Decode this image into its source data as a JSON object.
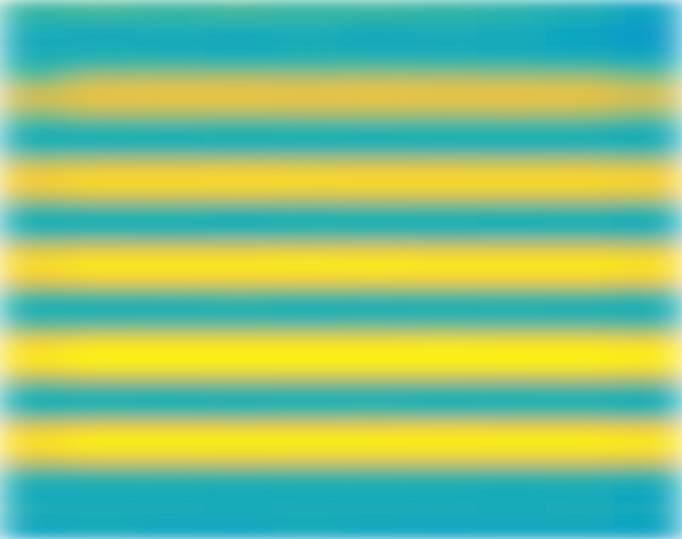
{
  "chart_data": {
    "type": "heatmap",
    "tick_labels": false,
    "zlim": [
      0,
      1
    ],
    "z": [
      [
        0.5,
        0.52,
        0.5,
        0.51,
        0.49,
        0.5,
        0.48,
        0.46,
        0.42,
        0.36
      ],
      [
        0.46,
        0.48,
        0.47,
        0.49,
        0.48,
        0.47,
        0.46,
        0.45,
        0.42,
        0.38
      ],
      [
        0.42,
        0.4,
        0.43,
        0.41,
        0.42,
        0.4,
        0.42,
        0.41,
        0.38,
        0.32
      ],
      [
        0.4,
        0.41,
        0.39,
        0.4,
        0.41,
        0.39,
        0.4,
        0.4,
        0.38,
        0.34
      ],
      [
        0.42,
        0.43,
        0.42,
        0.41,
        0.43,
        0.42,
        0.42,
        0.41,
        0.4,
        0.38
      ],
      [
        0.46,
        0.5,
        0.51,
        0.5,
        0.5,
        0.51,
        0.5,
        0.5,
        0.49,
        0.46
      ],
      [
        0.55,
        0.68,
        0.68,
        0.69,
        0.68,
        0.68,
        0.68,
        0.67,
        0.66,
        0.6
      ],
      [
        0.72,
        0.8,
        0.81,
        0.8,
        0.8,
        0.81,
        0.8,
        0.8,
        0.79,
        0.74
      ],
      [
        0.74,
        0.8,
        0.8,
        0.81,
        0.8,
        0.8,
        0.8,
        0.8,
        0.79,
        0.74
      ],
      [
        0.6,
        0.66,
        0.66,
        0.65,
        0.66,
        0.66,
        0.65,
        0.66,
        0.65,
        0.6
      ],
      [
        0.46,
        0.47,
        0.48,
        0.47,
        0.47,
        0.48,
        0.47,
        0.47,
        0.47,
        0.45
      ],
      [
        0.42,
        0.42,
        0.41,
        0.43,
        0.42,
        0.41,
        0.42,
        0.43,
        0.42,
        0.41
      ],
      [
        0.46,
        0.46,
        0.47,
        0.45,
        0.46,
        0.47,
        0.46,
        0.45,
        0.46,
        0.45
      ],
      [
        0.68,
        0.7,
        0.7,
        0.71,
        0.7,
        0.7,
        0.7,
        0.7,
        0.7,
        0.68
      ],
      [
        0.84,
        0.88,
        0.88,
        0.88,
        0.89,
        0.88,
        0.88,
        0.88,
        0.88,
        0.86
      ],
      [
        0.86,
        0.9,
        0.9,
        0.91,
        0.9,
        0.9,
        0.9,
        0.9,
        0.9,
        0.88
      ],
      [
        0.68,
        0.72,
        0.72,
        0.72,
        0.71,
        0.72,
        0.72,
        0.72,
        0.72,
        0.7
      ],
      [
        0.47,
        0.48,
        0.48,
        0.47,
        0.48,
        0.48,
        0.49,
        0.48,
        0.48,
        0.47
      ],
      [
        0.42,
        0.42,
        0.43,
        0.41,
        0.42,
        0.43,
        0.42,
        0.41,
        0.42,
        0.41
      ],
      [
        0.46,
        0.46,
        0.45,
        0.46,
        0.47,
        0.46,
        0.45,
        0.46,
        0.46,
        0.45
      ],
      [
        0.7,
        0.72,
        0.72,
        0.72,
        0.72,
        0.73,
        0.72,
        0.72,
        0.72,
        0.7
      ],
      [
        0.88,
        0.92,
        0.92,
        0.92,
        0.93,
        0.92,
        0.92,
        0.92,
        0.92,
        0.9
      ],
      [
        0.91,
        0.95,
        0.95,
        0.95,
        0.95,
        0.96,
        0.95,
        0.95,
        0.95,
        0.93
      ],
      [
        0.78,
        0.82,
        0.82,
        0.82,
        0.82,
        0.82,
        0.82,
        0.82,
        0.82,
        0.8
      ],
      [
        0.53,
        0.54,
        0.54,
        0.55,
        0.54,
        0.54,
        0.54,
        0.54,
        0.54,
        0.52
      ],
      [
        0.43,
        0.43,
        0.42,
        0.44,
        0.43,
        0.42,
        0.43,
        0.44,
        0.43,
        0.42
      ],
      [
        0.44,
        0.44,
        0.45,
        0.44,
        0.43,
        0.44,
        0.45,
        0.44,
        0.44,
        0.43
      ],
      [
        0.6,
        0.62,
        0.62,
        0.62,
        0.62,
        0.63,
        0.62,
        0.62,
        0.62,
        0.6
      ],
      [
        0.86,
        0.9,
        0.9,
        0.9,
        0.9,
        0.9,
        0.91,
        0.9,
        0.9,
        0.88
      ],
      [
        0.94,
        0.98,
        0.98,
        0.98,
        0.98,
        0.98,
        0.98,
        0.98,
        0.98,
        0.96
      ],
      [
        0.92,
        0.96,
        0.96,
        0.96,
        0.96,
        0.96,
        0.96,
        0.96,
        0.96,
        0.94
      ],
      [
        0.68,
        0.72,
        0.72,
        0.72,
        0.72,
        0.72,
        0.72,
        0.72,
        0.72,
        0.7
      ],
      [
        0.47,
        0.48,
        0.48,
        0.49,
        0.48,
        0.48,
        0.48,
        0.47,
        0.48,
        0.47
      ],
      [
        0.42,
        0.42,
        0.41,
        0.42,
        0.43,
        0.42,
        0.41,
        0.42,
        0.42,
        0.41
      ],
      [
        0.49,
        0.5,
        0.5,
        0.49,
        0.5,
        0.51,
        0.5,
        0.5,
        0.5,
        0.48
      ],
      [
        0.76,
        0.8,
        0.8,
        0.8,
        0.8,
        0.8,
        0.81,
        0.8,
        0.8,
        0.78
      ],
      [
        0.92,
        0.96,
        0.96,
        0.96,
        0.96,
        0.96,
        0.96,
        0.96,
        0.96,
        0.94
      ],
      [
        0.91,
        0.95,
        0.95,
        0.95,
        0.95,
        0.95,
        0.95,
        0.95,
        0.95,
        0.93
      ],
      [
        0.72,
        0.76,
        0.76,
        0.76,
        0.76,
        0.76,
        0.76,
        0.76,
        0.76,
        0.74
      ],
      [
        0.49,
        0.5,
        0.5,
        0.51,
        0.5,
        0.5,
        0.5,
        0.5,
        0.5,
        0.49
      ],
      [
        0.42,
        0.42,
        0.43,
        0.41,
        0.42,
        0.43,
        0.42,
        0.41,
        0.42,
        0.41
      ],
      [
        0.4,
        0.4,
        0.39,
        0.41,
        0.4,
        0.39,
        0.4,
        0.41,
        0.4,
        0.38
      ],
      [
        0.42,
        0.42,
        0.43,
        0.41,
        0.42,
        0.43,
        0.42,
        0.41,
        0.42,
        0.4
      ],
      [
        0.4,
        0.41,
        0.39,
        0.4,
        0.41,
        0.4,
        0.39,
        0.4,
        0.4,
        0.38
      ],
      [
        0.38,
        0.39,
        0.38,
        0.37,
        0.39,
        0.38,
        0.37,
        0.38,
        0.38,
        0.36
      ]
    ]
  }
}
